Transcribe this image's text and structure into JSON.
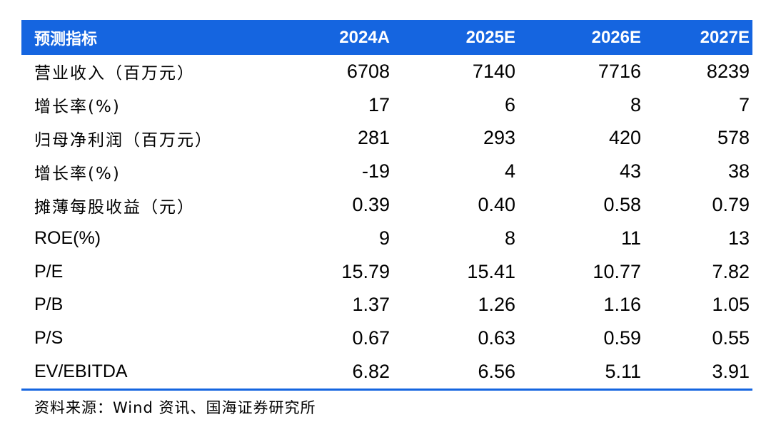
{
  "table": {
    "header": [
      "预测指标",
      "2024A",
      "2025E",
      "2026E",
      "2027E"
    ],
    "rows": [
      {
        "label": "营业收入（百万元）",
        "values": [
          "6708",
          "7140",
          "7716",
          "8239"
        ]
      },
      {
        "label": "增长率(%)",
        "values": [
          "17",
          "6",
          "8",
          "7"
        ]
      },
      {
        "label": "归母净利润（百万元）",
        "values": [
          "281",
          "293",
          "420",
          "578"
        ]
      },
      {
        "label": "增长率(%)",
        "values": [
          "-19",
          "4",
          "43",
          "38"
        ]
      },
      {
        "label": "摊薄每股收益（元）",
        "values": [
          "0.39",
          "0.40",
          "0.58",
          "0.79"
        ]
      },
      {
        "label": "ROE(%)",
        "values": [
          "9",
          "8",
          "11",
          "13"
        ]
      },
      {
        "label": "P/E",
        "values": [
          "15.79",
          "15.41",
          "10.77",
          "7.82"
        ]
      },
      {
        "label": "P/B",
        "values": [
          "1.37",
          "1.26",
          "1.16",
          "1.05"
        ]
      },
      {
        "label": "P/S",
        "values": [
          "0.67",
          "0.63",
          "0.59",
          "0.55"
        ]
      },
      {
        "label": "EV/EBITDA",
        "values": [
          "6.82",
          "6.56",
          "5.11",
          "3.91"
        ]
      }
    ]
  },
  "source": "资料来源：Wind 资讯、国海证券研究所",
  "colors": {
    "header_background": "#1565e0",
    "header_text": "#ffffff",
    "rule": "#1565e0"
  }
}
